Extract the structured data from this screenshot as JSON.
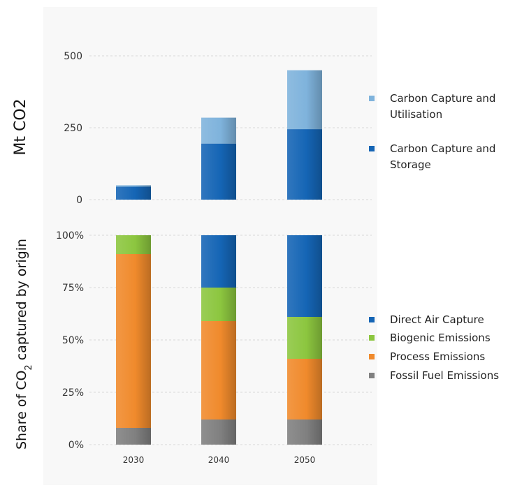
{
  "chart_data": [
    {
      "type": "bar",
      "stacked": true,
      "ylabel": "Mt CO2",
      "categories": [
        "2030",
        "2040",
        "2050"
      ],
      "ylim": [
        0,
        500
      ],
      "yticks": [
        "0",
        "250",
        "500"
      ],
      "grid": true,
      "legend_position": "right",
      "series": [
        {
          "name": "Carbon Capture and Storage",
          "values": [
            45,
            195,
            245
          ],
          "color": "#1565b5"
        },
        {
          "name": "Carbon Capture and Utilisation",
          "values": [
            5,
            90,
            205
          ],
          "color": "#7fb3dc"
        }
      ],
      "legend": [
        {
          "line1": "Carbon Capture and",
          "line2": "Utilisation",
          "color": "#7fb3dc"
        },
        {
          "line1": "Carbon Capture and",
          "line2": "Storage",
          "color": "#1565b5"
        }
      ]
    },
    {
      "type": "bar",
      "stacked": true,
      "ylabel_parts": {
        "pre": "Share of CO",
        "sub": "2",
        "post": " captured by origin"
      },
      "categories": [
        "2030",
        "2040",
        "2050"
      ],
      "ylim": [
        0,
        100
      ],
      "yticks": [
        "0%",
        "25%",
        "50%",
        "75%",
        "100%"
      ],
      "grid": true,
      "legend_position": "right",
      "series": [
        {
          "name": "Fossil Fuel Emissions",
          "values": [
            8,
            12,
            12
          ],
          "color": "#808080"
        },
        {
          "name": "Process Emissions",
          "values": [
            83,
            47,
            29
          ],
          "color": "#f08a2c"
        },
        {
          "name": "Biogenic Emissions",
          "values": [
            9,
            16,
            20
          ],
          "color": "#8cc63f"
        },
        {
          "name": "Direct Air Capture",
          "values": [
            0,
            25,
            39
          ],
          "color": "#1565b5"
        }
      ],
      "legend": [
        {
          "label": "Direct Air Capture",
          "color": "#1565b5"
        },
        {
          "label": "Biogenic Emissions",
          "color": "#8cc63f"
        },
        {
          "label": "Process Emissions",
          "color": "#f08a2c"
        },
        {
          "label": "Fossil Fuel Emissions",
          "color": "#808080"
        }
      ]
    }
  ]
}
